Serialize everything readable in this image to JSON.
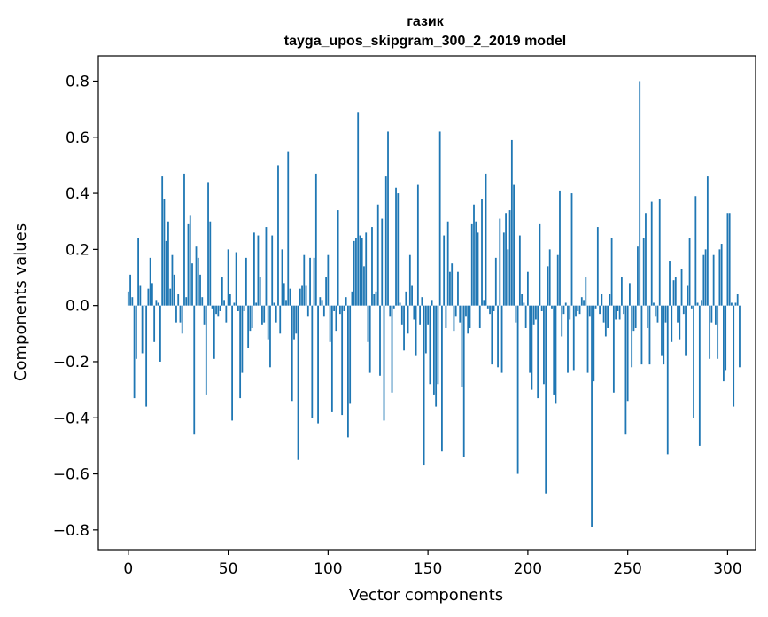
{
  "chart_data": {
    "type": "bar",
    "title_line1": "газик",
    "title_line2": "tayga_upos_skipgram_300_2_2019 model",
    "xlabel": "Vector components",
    "ylabel": "Components values",
    "xlim": [
      -15,
      314
    ],
    "ylim": [
      -0.87,
      0.89
    ],
    "xticks": [
      0,
      50,
      100,
      150,
      200,
      250,
      300
    ],
    "xtick_labels": [
      "0",
      "50",
      "100",
      "150",
      "200",
      "250",
      "300"
    ],
    "yticks": [
      0.8,
      0.6,
      0.4,
      0.2,
      0.0,
      -0.2,
      -0.4,
      -0.6,
      -0.8
    ],
    "ytick_labels": [
      "0.8",
      "0.6",
      "0.4",
      "0.2",
      "0.0",
      "−0.2",
      "−0.4",
      "−0.6",
      "−0.8"
    ],
    "bar_color": "#1f77b4",
    "values": [
      0.05,
      0.11,
      0.03,
      -0.33,
      -0.19,
      0.24,
      0.07,
      -0.17,
      0.0,
      -0.36,
      0.06,
      0.17,
      0.08,
      -0.13,
      0.02,
      0.01,
      -0.2,
      0.46,
      0.38,
      0.23,
      0.3,
      0.06,
      0.18,
      0.11,
      -0.06,
      0.04,
      -0.06,
      -0.1,
      0.47,
      0.03,
      0.29,
      0.32,
      0.15,
      -0.46,
      0.21,
      0.17,
      0.11,
      0.03,
      -0.07,
      -0.32,
      0.44,
      0.3,
      -0.01,
      -0.19,
      -0.03,
      -0.04,
      -0.02,
      0.1,
      0.02,
      -0.06,
      0.2,
      0.04,
      -0.41,
      0.01,
      0.19,
      -0.02,
      -0.33,
      -0.24,
      -0.02,
      0.17,
      -0.15,
      -0.09,
      -0.08,
      0.26,
      0.01,
      0.25,
      0.1,
      -0.07,
      -0.06,
      0.28,
      -0.12,
      -0.22,
      0.25,
      0.01,
      -0.06,
      0.5,
      -0.1,
      0.2,
      0.08,
      0.02,
      0.55,
      0.06,
      -0.34,
      -0.12,
      -0.1,
      -0.55,
      0.06,
      0.07,
      0.18,
      0.07,
      -0.04,
      0.17,
      -0.4,
      0.17,
      0.47,
      -0.42,
      0.03,
      0.02,
      -0.04,
      0.1,
      0.18,
      -0.13,
      -0.38,
      -0.02,
      -0.09,
      0.34,
      -0.03,
      -0.39,
      -0.02,
      0.03,
      -0.47,
      -0.35,
      0.05,
      0.23,
      0.24,
      0.69,
      0.25,
      0.24,
      0.14,
      0.26,
      -0.13,
      -0.24,
      0.28,
      0.04,
      0.05,
      0.36,
      -0.25,
      0.31,
      -0.41,
      0.46,
      0.62,
      -0.04,
      -0.31,
      -0.01,
      0.42,
      0.4,
      0.01,
      -0.07,
      -0.16,
      0.05,
      -0.1,
      0.18,
      0.07,
      -0.05,
      -0.18,
      0.43,
      -0.07,
      0.03,
      -0.57,
      -0.17,
      -0.07,
      -0.28,
      0.02,
      -0.32,
      -0.36,
      -0.28,
      0.62,
      -0.52,
      0.25,
      -0.08,
      0.3,
      0.12,
      0.15,
      -0.09,
      -0.04,
      0.12,
      -0.06,
      -0.29,
      -0.54,
      -0.04,
      -0.1,
      -0.08,
      0.29,
      0.36,
      0.3,
      0.26,
      -0.08,
      0.38,
      0.02,
      0.47,
      -0.01,
      -0.03,
      -0.21,
      -0.02,
      0.17,
      -0.22,
      0.31,
      -0.24,
      0.26,
      0.33,
      0.2,
      0.34,
      0.59,
      0.43,
      -0.06,
      -0.6,
      0.25,
      0.04,
      0.01,
      -0.08,
      0.12,
      -0.24,
      -0.3,
      -0.07,
      -0.05,
      -0.33,
      0.29,
      -0.02,
      -0.28,
      -0.67,
      0.14,
      0.2,
      -0.01,
      -0.32,
      -0.35,
      0.18,
      0.41,
      -0.11,
      -0.03,
      0.01,
      -0.24,
      -0.05,
      0.4,
      -0.23,
      -0.04,
      -0.02,
      -0.03,
      0.03,
      0.02,
      0.1,
      -0.24,
      -0.04,
      -0.79,
      -0.27,
      -0.01,
      0.28,
      -0.03,
      0.04,
      -0.06,
      -0.11,
      -0.08,
      0.04,
      0.24,
      -0.31,
      -0.05,
      -0.02,
      -0.05,
      0.1,
      -0.03,
      -0.46,
      -0.34,
      0.08,
      -0.22,
      -0.09,
      -0.08,
      0.21,
      0.8,
      -0.21,
      0.24,
      0.33,
      -0.08,
      -0.21,
      0.37,
      0.01,
      -0.04,
      -0.06,
      0.38,
      -0.18,
      -0.21,
      -0.06,
      -0.53,
      0.16,
      -0.13,
      0.09,
      0.1,
      -0.06,
      -0.12,
      0.13,
      -0.03,
      -0.18,
      0.07,
      0.24,
      -0.01,
      -0.4,
      0.39,
      0.01,
      -0.5,
      0.02,
      0.18,
      0.2,
      0.46,
      -0.19,
      -0.06,
      0.18,
      -0.07,
      -0.19,
      0.2,
      0.22,
      -0.27,
      -0.23,
      0.33,
      0.33,
      0.01,
      -0.36,
      0.01,
      0.04,
      -0.22
    ]
  }
}
